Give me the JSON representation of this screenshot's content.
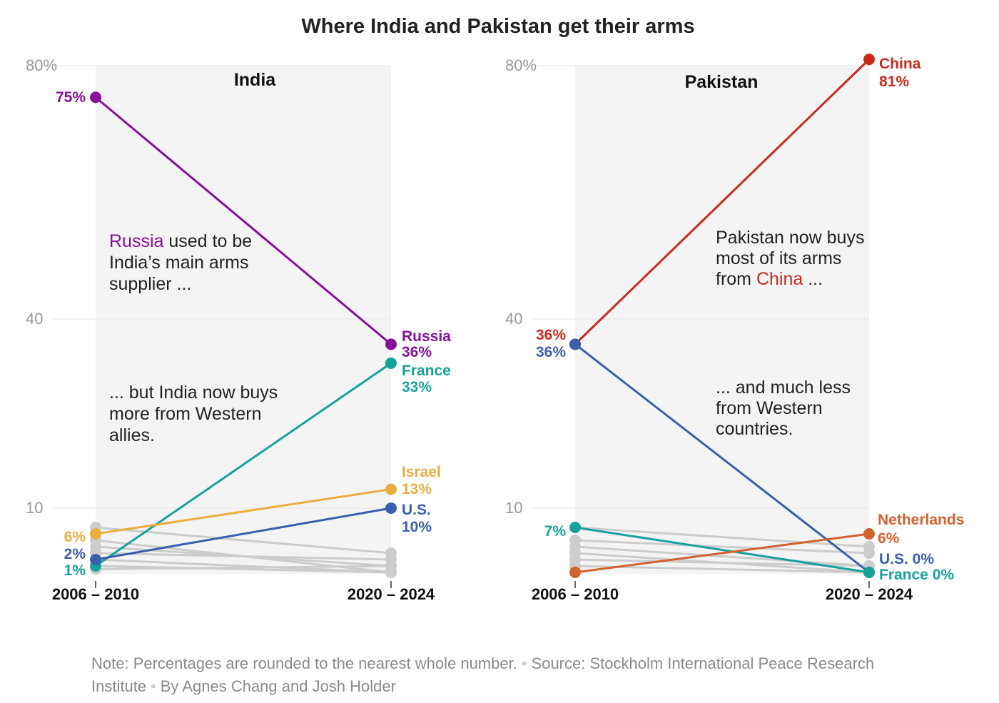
{
  "colors": {
    "russia": "#87109a",
    "france": "#16a29a",
    "israel": "#eaae3e",
    "us": "#3a5fab",
    "china": "#c92a1d",
    "netherlands": "#d2622e",
    "other": "#cccccc",
    "panel_bg": "#f4f4f4"
  },
  "chart_data": {
    "type": "line",
    "title": "Where India and Pakistan get their arms",
    "panels": [
      {
        "id": "india",
        "title": "India",
        "x": [
          "2006 – 2010",
          "2020 – 2024"
        ],
        "y_ticks": [
          "80%",
          "40",
          "10"
        ],
        "ylim": [
          0,
          80
        ],
        "series": [
          {
            "name": "Russia",
            "values": [
              75,
              36
            ],
            "color_key": "russia",
            "start_label": "75%",
            "end_name": "Russia",
            "end_value": "36%"
          },
          {
            "name": "France",
            "values": [
              1,
              33
            ],
            "color_key": "france",
            "start_label": "1%",
            "end_name": "France",
            "end_value": "33%"
          },
          {
            "name": "Israel",
            "values": [
              6,
              13
            ],
            "color_key": "israel",
            "start_label": "6%",
            "end_name": "Israel",
            "end_value": "13%"
          },
          {
            "name": "U.S.",
            "values": [
              2,
              10
            ],
            "color_key": "us",
            "start_label": "2%",
            "end_name": "U.S.",
            "end_value": "10%"
          }
        ],
        "other_series": [
          [
            7,
            3
          ],
          [
            5,
            0
          ],
          [
            4,
            1
          ],
          [
            3,
            2
          ],
          [
            2,
            0
          ],
          [
            1,
            0
          ],
          [
            0.5,
            1
          ]
        ],
        "annotations": [
          {
            "parts": [
              [
                "Russia",
                "russia"
              ],
              [
                " used to be",
                null
              ]
            ],
            "lines": [
              "India’s main arms",
              "supplier ..."
            ]
          },
          {
            "parts": [
              [
                "... but India now buys",
                null
              ]
            ],
            "lines": [
              "more from Western",
              "allies."
            ]
          }
        ]
      },
      {
        "id": "pakistan",
        "title": "Pakistan",
        "x": [
          "2006 – 2010",
          "2020 – 2024"
        ],
        "y_ticks": [
          "80%",
          "40",
          "10"
        ],
        "ylim": [
          0,
          80
        ],
        "series": [
          {
            "name": "China",
            "values": [
              36,
              81
            ],
            "color_key": "china",
            "start_label": "36%",
            "end_name": "China",
            "end_value": "81%"
          },
          {
            "name": "U.S.",
            "values": [
              36,
              0
            ],
            "color_key": "us",
            "start_label": "36%",
            "end_name": "U.S.",
            "end_value": "0%"
          },
          {
            "name": "France",
            "values": [
              7,
              0
            ],
            "color_key": "france",
            "start_label": "7%",
            "end_name": "France",
            "end_value": "0%"
          },
          {
            "name": "Netherlands",
            "values": [
              0,
              6
            ],
            "color_key": "netherlands",
            "start_label": "",
            "end_name": "Netherlands",
            "end_value": "6%"
          }
        ],
        "other_series": [
          [
            7,
            4
          ],
          [
            5,
            3
          ],
          [
            4,
            1
          ],
          [
            3,
            0
          ],
          [
            2,
            1
          ],
          [
            1,
            0
          ]
        ],
        "annotations": [
          {
            "parts": [
              [
                "Pakistan now buys",
                null
              ]
            ],
            "lines": [
              "most of its arms"
            ],
            "last_parts": [
              [
                "from ",
                null
              ],
              [
                "China",
                "china"
              ],
              [
                " ...",
                null
              ]
            ]
          },
          {
            "parts": [
              [
                "... and much less",
                null
              ]
            ],
            "lines": [
              "from Western",
              "countries."
            ]
          }
        ]
      }
    ]
  },
  "footer": {
    "note": "Note: Percentages are rounded to the nearest whole number.",
    "source": "Source: Stockholm International Peace Research Institute",
    "byline": "By Agnes Chang and Josh Holder"
  }
}
